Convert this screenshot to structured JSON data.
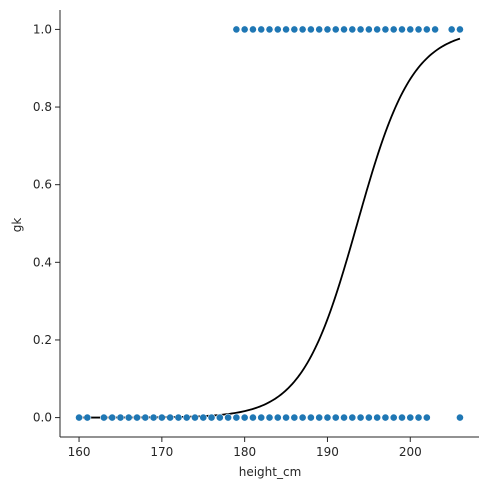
{
  "chart_data": {
    "type": "scatter",
    "xlabel": "height_cm",
    "ylabel": "gk",
    "xlim": [
      157.7,
      208.3
    ],
    "ylim": [
      -0.05,
      1.05
    ],
    "xticks": [
      160,
      170,
      180,
      190,
      200
    ],
    "yticks": [
      0.0,
      0.2,
      0.4,
      0.6,
      0.8,
      1.0
    ],
    "xtick_labels": [
      "160",
      "170",
      "180",
      "190",
      "200"
    ],
    "ytick_labels": [
      "0.0",
      "0.2",
      "0.4",
      "0.6",
      "0.8",
      "1.0"
    ],
    "grid": false,
    "scatter_color": "#1f77b4",
    "curve_color": "#000000",
    "points_gk0": [
      160,
      161,
      163,
      164,
      165,
      166,
      167,
      168,
      169,
      170,
      171,
      172,
      173,
      174,
      175,
      176,
      177,
      178,
      179,
      180,
      181,
      182,
      183,
      184,
      185,
      186,
      187,
      188,
      189,
      190,
      191,
      192,
      193,
      194,
      195,
      196,
      197,
      198,
      199,
      200,
      201,
      202,
      206
    ],
    "points_gk1": [
      179,
      180,
      181,
      182,
      183,
      184,
      185,
      186,
      187,
      188,
      189,
      190,
      191,
      192,
      193,
      194,
      195,
      196,
      197,
      198,
      199,
      200,
      201,
      202,
      203,
      205,
      206
    ],
    "logistic_fit": {
      "x_start": 160,
      "x_end": 206,
      "midpoint": 193.6,
      "slope": 0.3
    }
  }
}
